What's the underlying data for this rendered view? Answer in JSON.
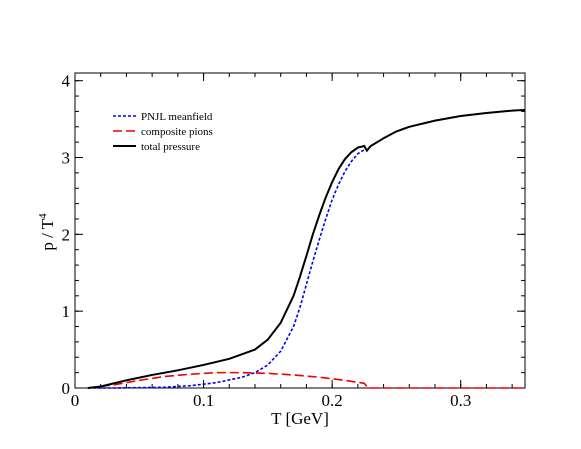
{
  "chart_data": {
    "type": "line",
    "title": "",
    "xlabel": "T [GeV]",
    "ylabel": "p / T",
    "ylabel_superscript": "4",
    "xlim": [
      0,
      0.35
    ],
    "ylim": [
      0,
      4.1
    ],
    "grid": false,
    "legend_position": "top-left",
    "x_ticks": [
      {
        "value": 0,
        "label": "0"
      },
      {
        "value": 0.1,
        "label": "0.1"
      },
      {
        "value": 0.2,
        "label": "0.2"
      },
      {
        "value": 0.3,
        "label": "0.3"
      }
    ],
    "y_ticks": [
      {
        "value": 0,
        "label": "0"
      },
      {
        "value": 1,
        "label": "1"
      },
      {
        "value": 2,
        "label": "2"
      },
      {
        "value": 3,
        "label": "3"
      },
      {
        "value": 4,
        "label": "4"
      }
    ],
    "x_minor_step": 0.02,
    "y_minor_step": 0.2,
    "series": [
      {
        "name": "PNJL meanfield",
        "color": "#0000ee",
        "dash": "blue-dotted",
        "points": [
          [
            0.01,
            0.0
          ],
          [
            0.03,
            0.0
          ],
          [
            0.05,
            0.005
          ],
          [
            0.07,
            0.01
          ],
          [
            0.09,
            0.03
          ],
          [
            0.11,
            0.07
          ],
          [
            0.13,
            0.14
          ],
          [
            0.14,
            0.2
          ],
          [
            0.15,
            0.3
          ],
          [
            0.16,
            0.48
          ],
          [
            0.17,
            0.8
          ],
          [
            0.175,
            1.05
          ],
          [
            0.18,
            1.35
          ],
          [
            0.185,
            1.65
          ],
          [
            0.19,
            1.93
          ],
          [
            0.195,
            2.2
          ],
          [
            0.2,
            2.45
          ],
          [
            0.205,
            2.65
          ],
          [
            0.21,
            2.82
          ],
          [
            0.215,
            2.95
          ],
          [
            0.22,
            3.05
          ],
          [
            0.225,
            3.1
          ]
        ]
      },
      {
        "name": "composite pions",
        "color": "#ee0000",
        "dash": "red-dashed",
        "points": [
          [
            0.01,
            0.0
          ],
          [
            0.03,
            0.04
          ],
          [
            0.05,
            0.1
          ],
          [
            0.07,
            0.15
          ],
          [
            0.09,
            0.18
          ],
          [
            0.11,
            0.2
          ],
          [
            0.13,
            0.2
          ],
          [
            0.15,
            0.19
          ],
          [
            0.17,
            0.17
          ],
          [
            0.19,
            0.14
          ],
          [
            0.21,
            0.1
          ],
          [
            0.225,
            0.06
          ],
          [
            0.227,
            0.02
          ],
          [
            0.228,
            0.0
          ],
          [
            0.35,
            0.0
          ]
        ]
      },
      {
        "name": "total pressure",
        "color": "#000000",
        "dash": "solid",
        "points": [
          [
            0.01,
            0.0
          ],
          [
            0.02,
            0.02
          ],
          [
            0.04,
            0.1
          ],
          [
            0.06,
            0.17
          ],
          [
            0.08,
            0.23
          ],
          [
            0.1,
            0.3
          ],
          [
            0.12,
            0.38
          ],
          [
            0.14,
            0.5
          ],
          [
            0.15,
            0.63
          ],
          [
            0.16,
            0.85
          ],
          [
            0.17,
            1.2
          ],
          [
            0.175,
            1.45
          ],
          [
            0.18,
            1.72
          ],
          [
            0.185,
            2.0
          ],
          [
            0.19,
            2.25
          ],
          [
            0.195,
            2.48
          ],
          [
            0.2,
            2.68
          ],
          [
            0.205,
            2.85
          ],
          [
            0.21,
            2.98
          ],
          [
            0.215,
            3.07
          ],
          [
            0.22,
            3.13
          ],
          [
            0.225,
            3.15
          ],
          [
            0.227,
            3.09
          ],
          [
            0.23,
            3.15
          ],
          [
            0.24,
            3.25
          ],
          [
            0.25,
            3.34
          ],
          [
            0.26,
            3.4
          ],
          [
            0.28,
            3.48
          ],
          [
            0.3,
            3.54
          ],
          [
            0.32,
            3.58
          ],
          [
            0.34,
            3.61
          ],
          [
            0.35,
            3.62
          ]
        ]
      }
    ]
  }
}
